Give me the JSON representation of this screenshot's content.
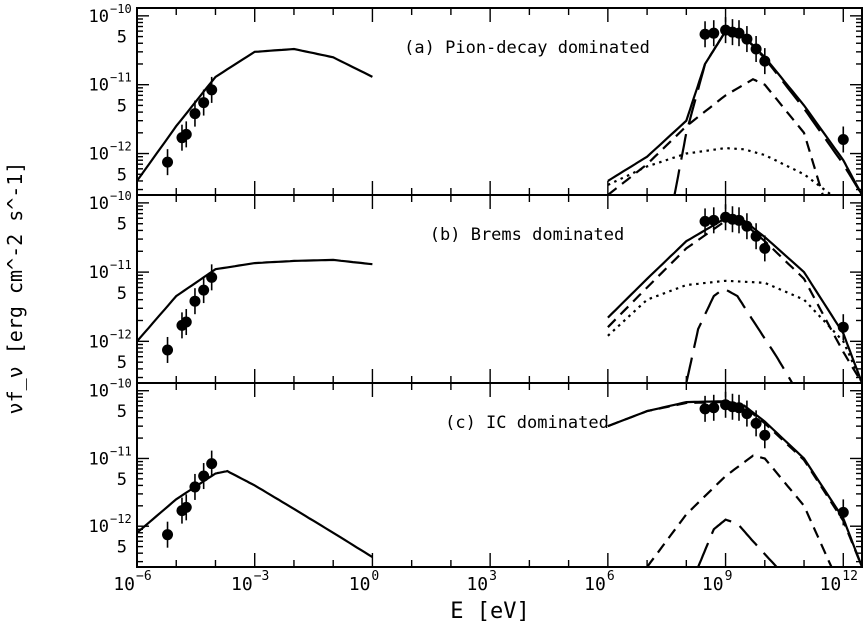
{
  "figure": {
    "ylabel": "νf_ν [erg cm^-2 s^-1]",
    "xlabel": "E [eV]"
  },
  "chart_data": [
    {
      "type": "line",
      "panel": "a",
      "title": "(a) Pion-decay dominated",
      "xscale": "log",
      "yscale": "log",
      "xlim": [
        1e-06,
        3000000000000.0
      ],
      "ylim": [
        2.5e-13,
        1.3e-10
      ],
      "data_points": {
        "x": [
          6e-06,
          1.4e-05,
          1.8e-05,
          3e-05,
          5e-05,
          8e-05,
          300000000.0,
          500000000.0,
          1000000000.0,
          1500000000.0,
          2200000000.0,
          3500000000.0,
          6000000000.0,
          10000000000.0,
          1000000000000.0
        ],
        "y": [
          7.5e-13,
          1.7e-12,
          1.9e-12,
          3.8e-12,
          5.5e-12,
          8.4e-12,
          5.4e-11,
          5.6e-11,
          6.2e-11,
          5.8e-11,
          5.6e-11,
          4.6e-11,
          3.3e-11,
          2.2e-11,
          1.6e-12
        ]
      },
      "series": [
        {
          "style": "solid",
          "x": [
            1e-06,
            1e-05,
            0.0001,
            0.001,
            0.01,
            0.1,
            1
          ],
          "y": [
            4e-13,
            2.5e-12,
            1.3e-11,
            3e-11,
            3.3e-11,
            2.5e-11,
            1.3e-11
          ]
        },
        {
          "style": "solid",
          "x": [
            1000000.0,
            10000000.0,
            100000000.0,
            300000000.0,
            1000000000.0,
            3000000000.0,
            10000000000.0,
            100000000000.0,
            1000000000000.0,
            3000000000000.0
          ],
          "y": [
            4e-13,
            9e-13,
            3e-12,
            2e-11,
            6e-11,
            5e-11,
            2.5e-11,
            5e-12,
            8e-13,
            2.5e-13
          ]
        },
        {
          "style": "long-dash",
          "x": [
            50000000.0,
            100000000.0,
            300000000.0,
            1000000000.0,
            3000000000.0,
            10000000000.0,
            100000000000.0,
            1000000000000.0,
            3000000000000.0
          ],
          "y": [
            2.5e-13,
            2e-12,
            2e-11,
            6e-11,
            5e-11,
            2.4e-11,
            4.5e-12,
            7e-13,
            2.5e-13
          ]
        },
        {
          "style": "dash",
          "x": [
            1000000.0,
            10000000.0,
            100000000.0,
            1000000000.0,
            5000000000.0,
            10000000000.0,
            100000000000.0,
            300000000000.0
          ],
          "y": [
            2.5e-13,
            7e-13,
            2.5e-12,
            7e-12,
            1.2e-11,
            1e-11,
            2e-12,
            2.5e-13
          ]
        },
        {
          "style": "dot",
          "x": [
            1000000.0,
            10000000.0,
            100000000.0,
            1000000000.0,
            3000000000.0,
            10000000000.0,
            100000000000.0,
            500000000000.0
          ],
          "y": [
            3.5e-13,
            6.5e-13,
            1e-12,
            1.2e-12,
            1.15e-12,
            9.5e-13,
            5e-13,
            2.5e-13
          ]
        }
      ]
    },
    {
      "type": "line",
      "panel": "b",
      "title": "(b) Brems dominated",
      "xscale": "log",
      "yscale": "log",
      "xlim": [
        1e-06,
        3000000000000.0
      ],
      "ylim": [
        2.5e-13,
        1.3e-10
      ],
      "data_points": {
        "x": [
          6e-06,
          1.4e-05,
          1.8e-05,
          3e-05,
          5e-05,
          8e-05,
          300000000.0,
          500000000.0,
          1000000000.0,
          1500000000.0,
          2200000000.0,
          3500000000.0,
          6000000000.0,
          10000000000.0,
          1000000000000.0
        ],
        "y": [
          7.5e-13,
          1.7e-12,
          1.9e-12,
          3.8e-12,
          5.5e-12,
          8.4e-12,
          5.4e-11,
          5.6e-11,
          6.2e-11,
          5.8e-11,
          5.6e-11,
          4.6e-11,
          3.3e-11,
          2.2e-11,
          1.6e-12
        ]
      },
      "series": [
        {
          "style": "solid",
          "x": [
            1e-06,
            1e-05,
            0.0001,
            0.001,
            0.01,
            0.1,
            1
          ],
          "y": [
            1e-12,
            4.5e-12,
            1.1e-11,
            1.35e-11,
            1.45e-11,
            1.5e-11,
            1.3e-11
          ]
        },
        {
          "style": "solid",
          "x": [
            1000000.0,
            10000000.0,
            100000000.0,
            1000000000.0,
            3000000000.0,
            10000000000.0,
            100000000000.0,
            1000000000000.0,
            3000000000000.0
          ],
          "y": [
            2.2e-12,
            8e-12,
            2.8e-11,
            6e-11,
            5.5e-11,
            3.2e-11,
            1e-11,
            1.3e-12,
            2.5e-13
          ]
        },
        {
          "style": "dash",
          "x": [
            1000000.0,
            10000000.0,
            100000000.0,
            1000000000.0,
            3000000000.0,
            10000000000.0,
            100000000000.0,
            1000000000000.0,
            3000000000000.0
          ],
          "y": [
            1.6e-12,
            6e-12,
            2.2e-11,
            5.5e-11,
            5e-11,
            2.8e-11,
            8e-12,
            7e-13,
            2.5e-13
          ]
        },
        {
          "style": "dot",
          "x": [
            1000000.0,
            10000000.0,
            100000000.0,
            1000000000.0,
            10000000000.0,
            100000000000.0,
            1000000000000.0,
            3000000000000.0
          ],
          "y": [
            1.2e-12,
            4e-12,
            6.5e-12,
            7.5e-12,
            7e-12,
            4e-12,
            1e-12,
            2.5e-13
          ]
        },
        {
          "style": "long-dash",
          "x": [
            100000000.0,
            200000000.0,
            500000000.0,
            900000000.0,
            2000000000.0,
            5000000000.0,
            20000000000.0,
            50000000000.0
          ],
          "y": [
            2.5e-13,
            1.5e-12,
            4.5e-12,
            5.8e-12,
            4.5e-12,
            2e-12,
            6e-13,
            2.5e-13
          ]
        }
      ]
    },
    {
      "type": "line",
      "panel": "c",
      "title": "(c) IC dominated",
      "xscale": "log",
      "yscale": "log",
      "xlim": [
        1e-06,
        3000000000000.0
      ],
      "ylim": [
        2.5e-13,
        1.3e-10
      ],
      "data_points": {
        "x": [
          6e-06,
          1.4e-05,
          1.8e-05,
          3e-05,
          5e-05,
          8e-05,
          300000000.0,
          500000000.0,
          1000000000.0,
          1500000000.0,
          2200000000.0,
          3500000000.0,
          6000000000.0,
          10000000000.0,
          1000000000000.0
        ],
        "y": [
          7.5e-13,
          1.7e-12,
          1.9e-12,
          3.8e-12,
          5.5e-12,
          8.4e-12,
          5.4e-11,
          5.6e-11,
          6.2e-11,
          5.8e-11,
          5.6e-11,
          4.6e-11,
          3.3e-11,
          2.2e-11,
          1.6e-12
        ]
      },
      "series": [
        {
          "style": "solid",
          "x": [
            1e-06,
            1e-05,
            0.0001,
            0.0002,
            0.001,
            0.01,
            0.1,
            1
          ],
          "y": [
            8e-13,
            2.5e-12,
            6e-12,
            6.5e-12,
            4e-12,
            1.8e-12,
            8e-13,
            3.5e-13
          ]
        },
        {
          "style": "solid",
          "x": [
            1000000.0,
            10000000.0,
            100000000.0,
            1000000000.0,
            3000000000.0,
            10000000000.0,
            100000000000.0,
            1000000000000.0,
            3000000000000.0
          ],
          "y": [
            3e-11,
            5e-11,
            6.8e-11,
            7e-11,
            6e-11,
            3.5e-11,
            1e-11,
            1.3e-12,
            2.5e-13
          ]
        },
        {
          "style": "dash",
          "x": [
            1000000.0,
            10000000.0,
            100000000.0,
            1000000000.0,
            3000000000.0,
            10000000000.0,
            100000000000.0,
            1000000000000.0,
            3000000000000.0
          ],
          "y": [
            3e-11,
            5e-11,
            6.6e-11,
            6.8e-11,
            5.8e-11,
            3.3e-11,
            9.5e-12,
            1.2e-12,
            2.5e-13
          ]
        },
        {
          "style": "dash",
          "x": [
            10000000.0,
            100000000.0,
            1000000000.0,
            5000000000.0,
            10000000000.0,
            100000000000.0,
            500000000000.0
          ],
          "y": [
            2.5e-13,
            1.5e-12,
            5.5e-12,
            1.1e-11,
            1e-11,
            2e-12,
            2.5e-13
          ]
        },
        {
          "style": "long-dash",
          "x": [
            200000000.0,
            500000000.0,
            1000000000.0,
            2000000000.0,
            5000000000.0,
            20000000000.0
          ],
          "y": [
            2.5e-13,
            9e-13,
            1.25e-12,
            1.1e-12,
            6e-13,
            2.5e-13
          ]
        }
      ]
    }
  ]
}
